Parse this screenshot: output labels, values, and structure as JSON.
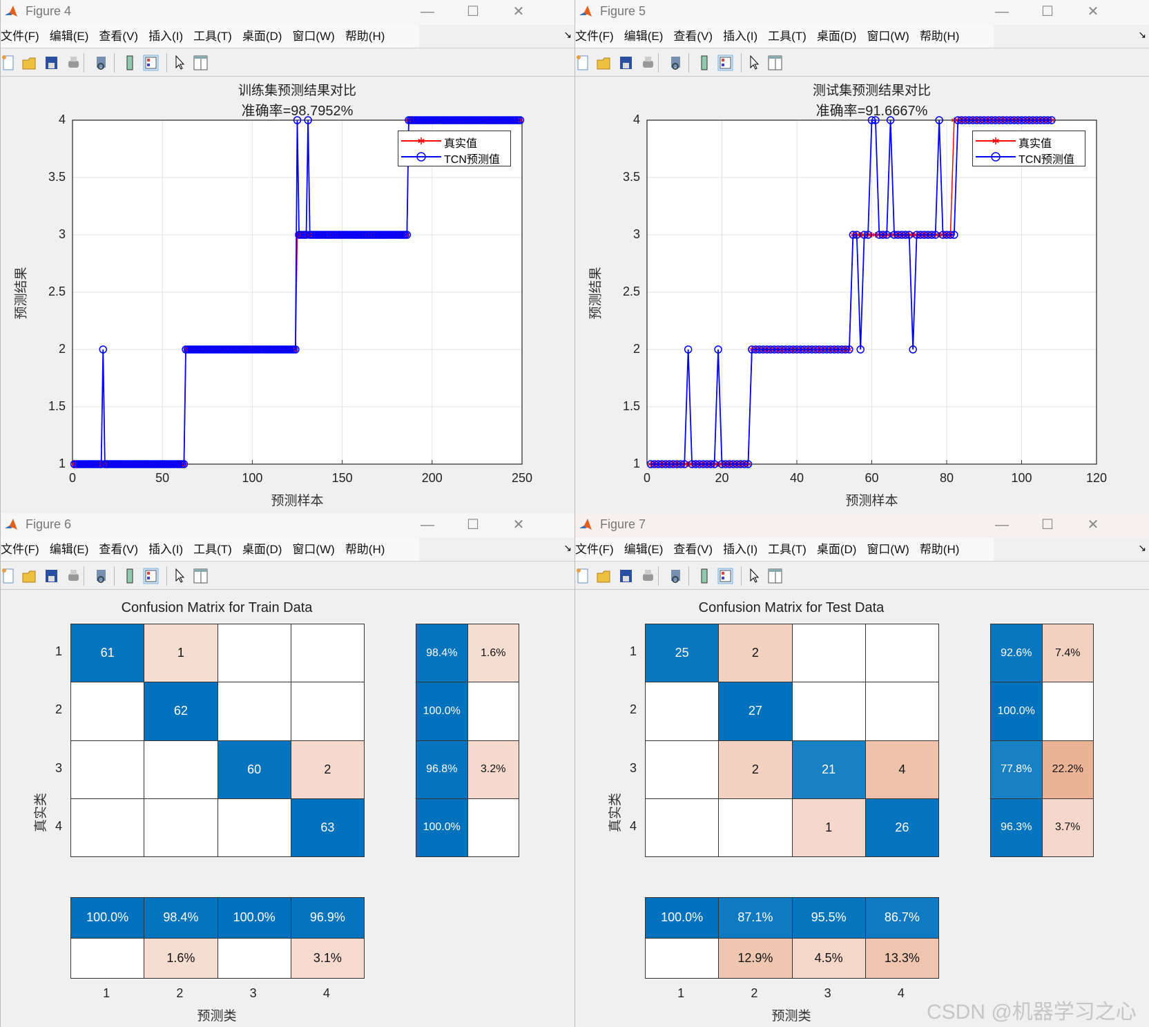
{
  "menu": [
    "文件(F)",
    "编辑(E)",
    "查看(V)",
    "插入(I)",
    "工具(T)",
    "桌面(D)",
    "窗口(W)",
    "帮助(H)"
  ],
  "window_controls": {
    "minimize": "—",
    "maximize": "☐",
    "close": "✕"
  },
  "toolbar_icons": [
    "new-file-icon",
    "open-folder-icon",
    "save-icon",
    "print-icon",
    "link-icon",
    "colorbar-icon",
    "legend-icon",
    "pointer-icon",
    "property-inspector-icon"
  ],
  "watermark": "CSDN @机器学习之心",
  "colors": {
    "true_line": "#ff0000",
    "pred_line": "#0000ff",
    "diag": "#0072bd",
    "offdiag": "#d95319"
  },
  "figures": [
    {
      "title": "Figure 4"
    },
    {
      "title": "Figure 5"
    },
    {
      "title": "Figure 6"
    },
    {
      "title": "Figure 7"
    }
  ],
  "chart_data": [
    {
      "type": "line",
      "title": "训练集预测结果对比",
      "subtitle": "准确率=98.7952%",
      "xlabel": "预测样本",
      "ylabel": "预测结果",
      "xlim": [
        0,
        250
      ],
      "ylim": [
        1,
        4
      ],
      "xticks": [
        0,
        50,
        100,
        150,
        200,
        250
      ],
      "yticks": [
        1,
        1.5,
        2,
        2.5,
        3,
        3.5,
        4
      ],
      "ytick_labels": [
        "1",
        "1.5",
        "2",
        "2.5",
        "3",
        "3.5",
        "4"
      ],
      "grid": true,
      "legend_position": "top-right",
      "legend": [
        "真实值",
        "TCN预测值"
      ],
      "true_runs": [
        {
          "label": 1,
          "count": 62
        },
        {
          "label": 2,
          "count": 62
        },
        {
          "label": 3,
          "count": 62
        },
        {
          "label": 4,
          "count": 63
        }
      ],
      "pred_errors": [
        {
          "index": 17,
          "value": 2
        },
        {
          "index": 125,
          "value": 4
        },
        {
          "index": 131,
          "value": 4
        }
      ]
    },
    {
      "type": "line",
      "title": "测试集预测结果对比",
      "subtitle": "准确率=91.6667%",
      "xlabel": "预测样本",
      "ylabel": "预测结果",
      "xlim": [
        0,
        120
      ],
      "ylim": [
        1,
        4
      ],
      "xticks": [
        0,
        20,
        40,
        60,
        80,
        100,
        120
      ],
      "yticks": [
        1,
        1.5,
        2,
        2.5,
        3,
        3.5,
        4
      ],
      "ytick_labels": [
        "1",
        "1.5",
        "2",
        "2.5",
        "3",
        "3.5",
        "4"
      ],
      "grid": true,
      "legend_position": "top-right",
      "legend": [
        "真实值",
        "TCN预测值"
      ],
      "true_runs": [
        {
          "label": 1,
          "count": 27
        },
        {
          "label": 2,
          "count": 27
        },
        {
          "label": 3,
          "count": 27
        },
        {
          "label": 4,
          "count": 27
        }
      ],
      "pred_errors": [
        {
          "index": 11,
          "value": 2
        },
        {
          "index": 19,
          "value": 2
        },
        {
          "index": 57,
          "value": 2
        },
        {
          "index": 60,
          "value": 4
        },
        {
          "index": 61,
          "value": 4
        },
        {
          "index": 65,
          "value": 4
        },
        {
          "index": 71,
          "value": 2
        },
        {
          "index": 78,
          "value": 4
        },
        {
          "index": 82,
          "value": 3
        }
      ]
    },
    {
      "type": "heatmap",
      "title": "Confusion Matrix for Train Data",
      "xlabel": "预测类",
      "ylabel": "真实类",
      "classes": [
        "1",
        "2",
        "3",
        "4"
      ],
      "matrix": [
        [
          61,
          1,
          0,
          0
        ],
        [
          0,
          62,
          0,
          0
        ],
        [
          0,
          0,
          60,
          2
        ],
        [
          0,
          0,
          0,
          63
        ]
      ],
      "row_summary": [
        [
          "98.4%",
          "1.6%"
        ],
        [
          "100.0%",
          ""
        ],
        [
          "96.8%",
          "3.2%"
        ],
        [
          "100.0%",
          ""
        ]
      ],
      "col_summary": [
        [
          "100.0%",
          "98.4%",
          "100.0%",
          "96.9%"
        ],
        [
          "",
          "1.6%",
          "",
          "3.1%"
        ]
      ]
    },
    {
      "type": "heatmap",
      "title": "Confusion Matrix for Test Data",
      "xlabel": "预测类",
      "ylabel": "真实类",
      "classes": [
        "1",
        "2",
        "3",
        "4"
      ],
      "matrix": [
        [
          25,
          2,
          0,
          0
        ],
        [
          0,
          27,
          0,
          0
        ],
        [
          0,
          2,
          21,
          4
        ],
        [
          0,
          0,
          1,
          26
        ]
      ],
      "row_summary": [
        [
          "92.6%",
          "7.4%"
        ],
        [
          "100.0%",
          ""
        ],
        [
          "77.8%",
          "22.2%"
        ],
        [
          "96.3%",
          "3.7%"
        ]
      ],
      "col_summary": [
        [
          "100.0%",
          "87.1%",
          "95.5%",
          "86.7%"
        ],
        [
          "",
          "12.9%",
          "4.5%",
          "13.3%"
        ]
      ]
    }
  ]
}
